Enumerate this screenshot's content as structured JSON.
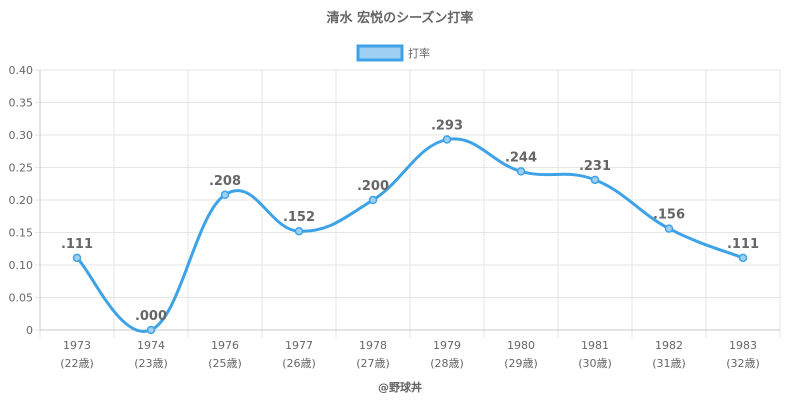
{
  "chart_data": {
    "type": "line",
    "title": "清水 宏悦のシーズン打率",
    "categories": [
      "1973",
      "1974",
      "1976",
      "1977",
      "1978",
      "1979",
      "1980",
      "1981",
      "1982",
      "1983"
    ],
    "category_sublabels": [
      "(22歳)",
      "(23歳)",
      "(25歳)",
      "(26歳)",
      "(27歳)",
      "(28歳)",
      "(29歳)",
      "(30歳)",
      "(31歳)",
      "(32歳)"
    ],
    "series": [
      {
        "name": "打率",
        "values": [
          0.111,
          0.0,
          0.208,
          0.152,
          0.2,
          0.293,
          0.244,
          0.231,
          0.156,
          0.111
        ],
        "labels": [
          ".111",
          ".000",
          ".208",
          ".152",
          ".200",
          ".293",
          ".244",
          ".231",
          ".156",
          ".111"
        ],
        "color": "#3ea3e6",
        "fill_color": "#9fd0f2"
      }
    ],
    "ylim": [
      0,
      0.4
    ],
    "y_ticks": [
      0,
      0.05,
      0.1,
      0.15,
      0.2,
      0.25,
      0.3,
      0.35,
      0.4
    ],
    "y_tick_labels": [
      "0",
      "0.05",
      "0.10",
      "0.15",
      "0.20",
      "0.25",
      "0.30",
      "0.35",
      "0.40"
    ],
    "grid": true,
    "legend_position": "top"
  },
  "credit": "@野球丼",
  "colors": {
    "grid": "#e6e6e6",
    "axis": "#c8c8c8",
    "text": "#666666"
  }
}
